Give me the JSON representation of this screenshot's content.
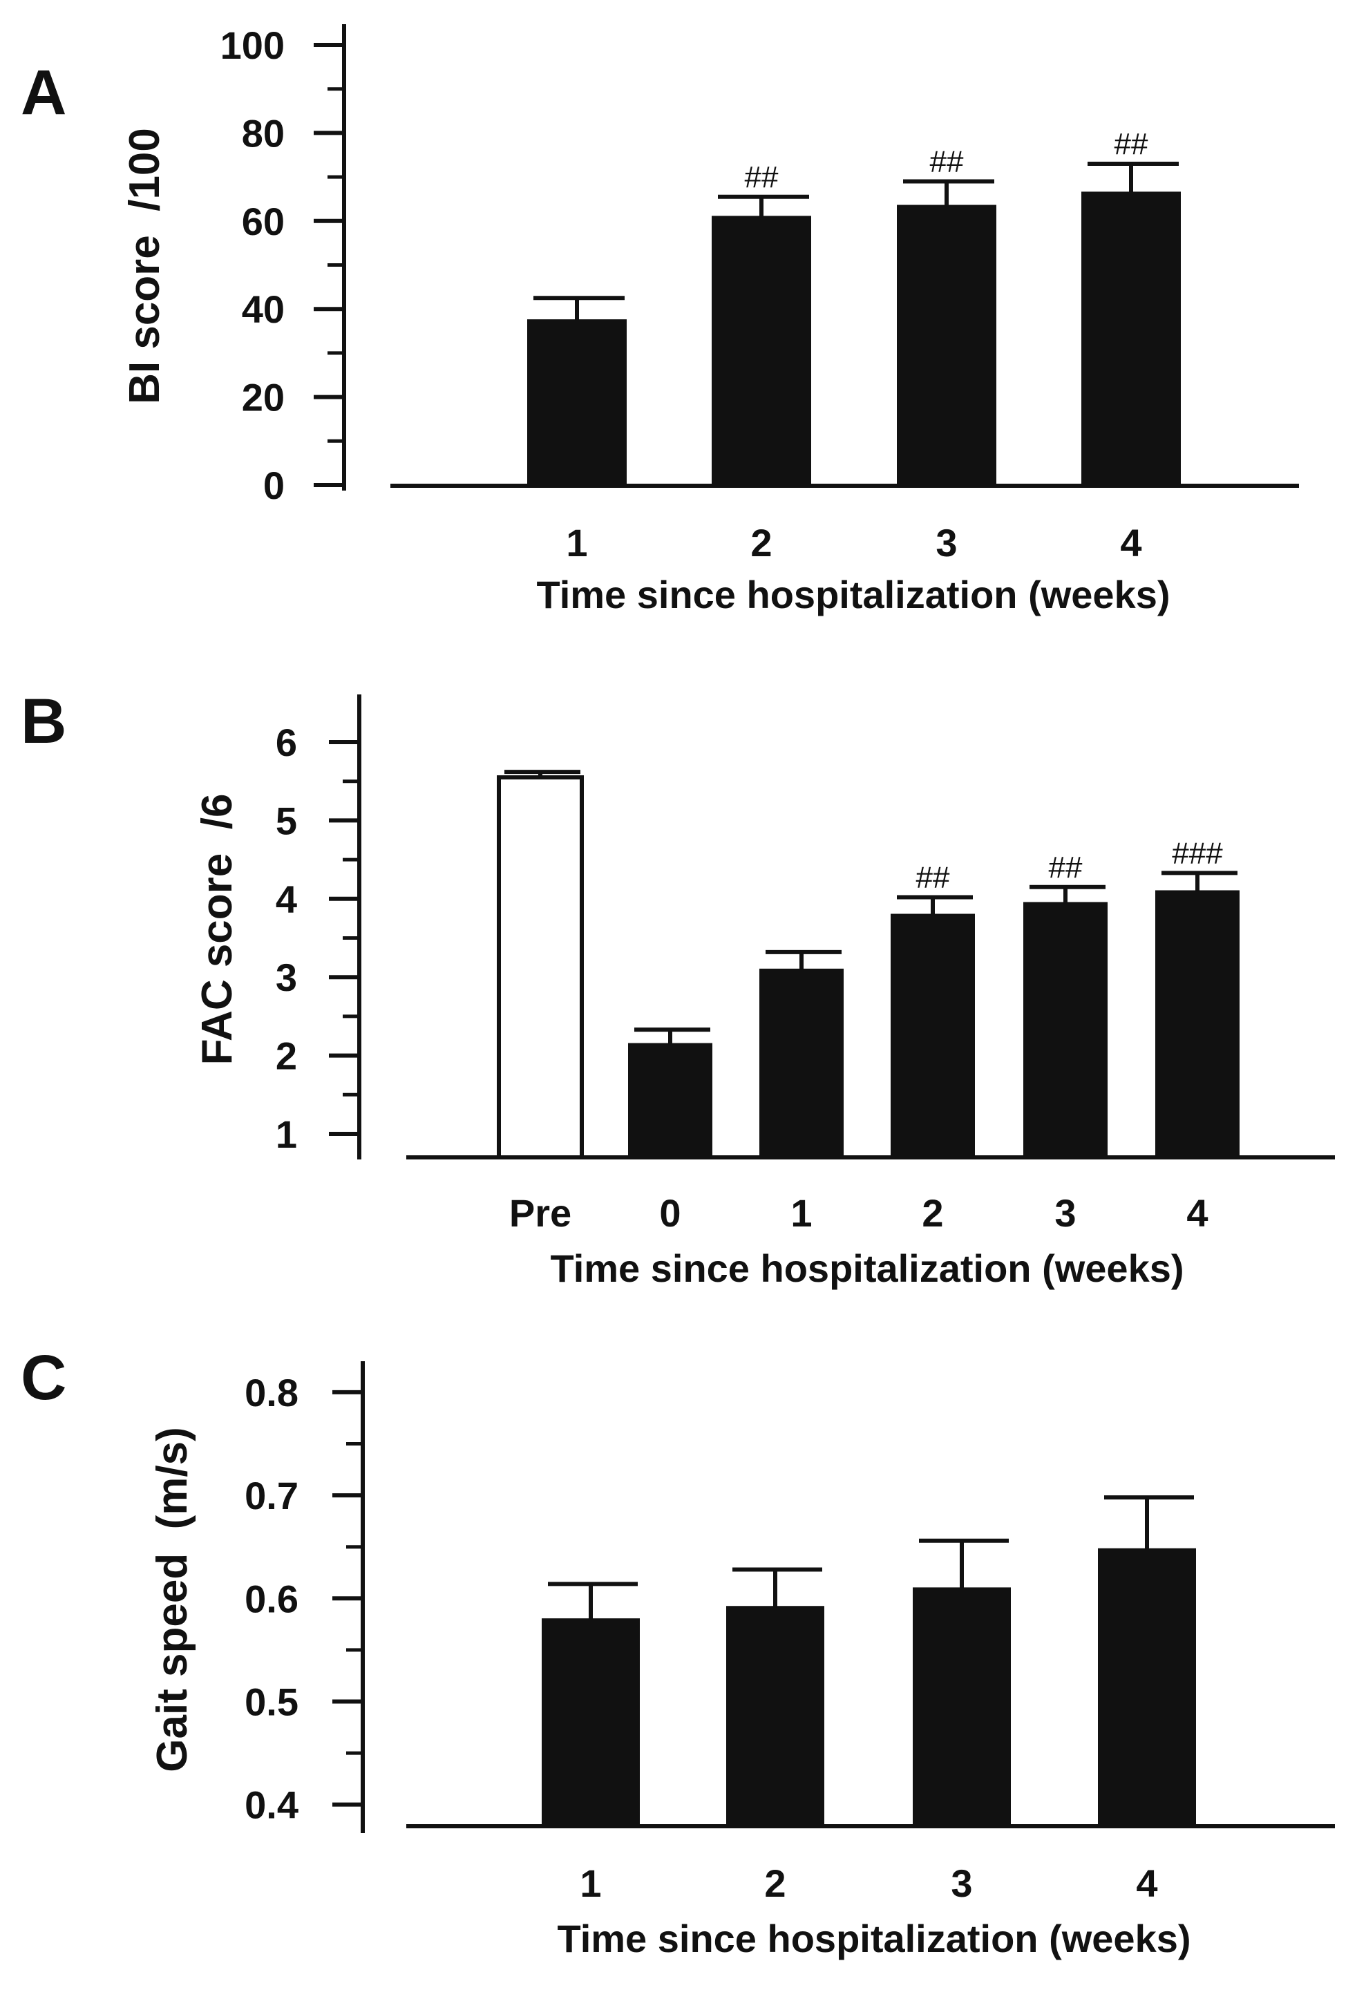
{
  "colors": {
    "ink": "#111111",
    "bar_filled": "#111111",
    "bar_open": "#ffffff"
  },
  "chart_data": [
    {
      "panel": "A",
      "type": "bar",
      "categories": [
        "1",
        "2",
        "3",
        "4"
      ],
      "values": [
        37.5,
        61,
        63.5,
        66.5
      ],
      "errors": [
        5,
        4.5,
        5.5,
        6.5
      ],
      "fills": [
        "filled",
        "filled",
        "filled",
        "filled"
      ],
      "annotations": [
        "",
        "##",
        "##",
        "##"
      ],
      "xlabel": "Time since hospitalization (weeks)",
      "ylabel": "BI score  /100",
      "ylim": [
        0,
        100
      ],
      "yticks": [
        "0",
        "20",
        "40",
        "60",
        "80",
        "100"
      ],
      "grid": false,
      "legend": false
    },
    {
      "panel": "B",
      "type": "bar",
      "categories": [
        "Pre",
        "0",
        "1",
        "2",
        "3",
        "4"
      ],
      "values": [
        5.55,
        2.15,
        3.1,
        3.8,
        3.95,
        4.1
      ],
      "errors": [
        0.07,
        0.18,
        0.22,
        0.22,
        0.2,
        0.23
      ],
      "fills": [
        "open",
        "filled",
        "filled",
        "filled",
        "filled",
        "filled"
      ],
      "annotations": [
        "",
        "",
        "",
        "##",
        "##",
        "###"
      ],
      "xlabel": "Time since hospitalization (weeks)",
      "ylabel": "FAC score  /6",
      "ylim": [
        0.7,
        6.3
      ],
      "yticks": [
        "1",
        "2",
        "3",
        "4",
        "5",
        "6"
      ],
      "grid": false,
      "legend": false
    },
    {
      "panel": "C",
      "type": "bar",
      "categories": [
        "1",
        "2",
        "3",
        "4"
      ],
      "values": [
        0.58,
        0.592,
        0.61,
        0.648
      ],
      "errors": [
        0.034,
        0.036,
        0.046,
        0.05
      ],
      "fills": [
        "filled",
        "filled",
        "filled",
        "filled"
      ],
      "annotations": [
        "",
        "",
        "",
        ""
      ],
      "xlabel": "Time since hospitalization (weeks)",
      "ylabel": "Gait speed  (m/s)",
      "ylim": [
        0.379,
        0.81
      ],
      "yticks": [
        "0.4",
        "0.5",
        "0.6",
        "0.7",
        "0.8"
      ],
      "grid": false,
      "legend": false
    }
  ]
}
